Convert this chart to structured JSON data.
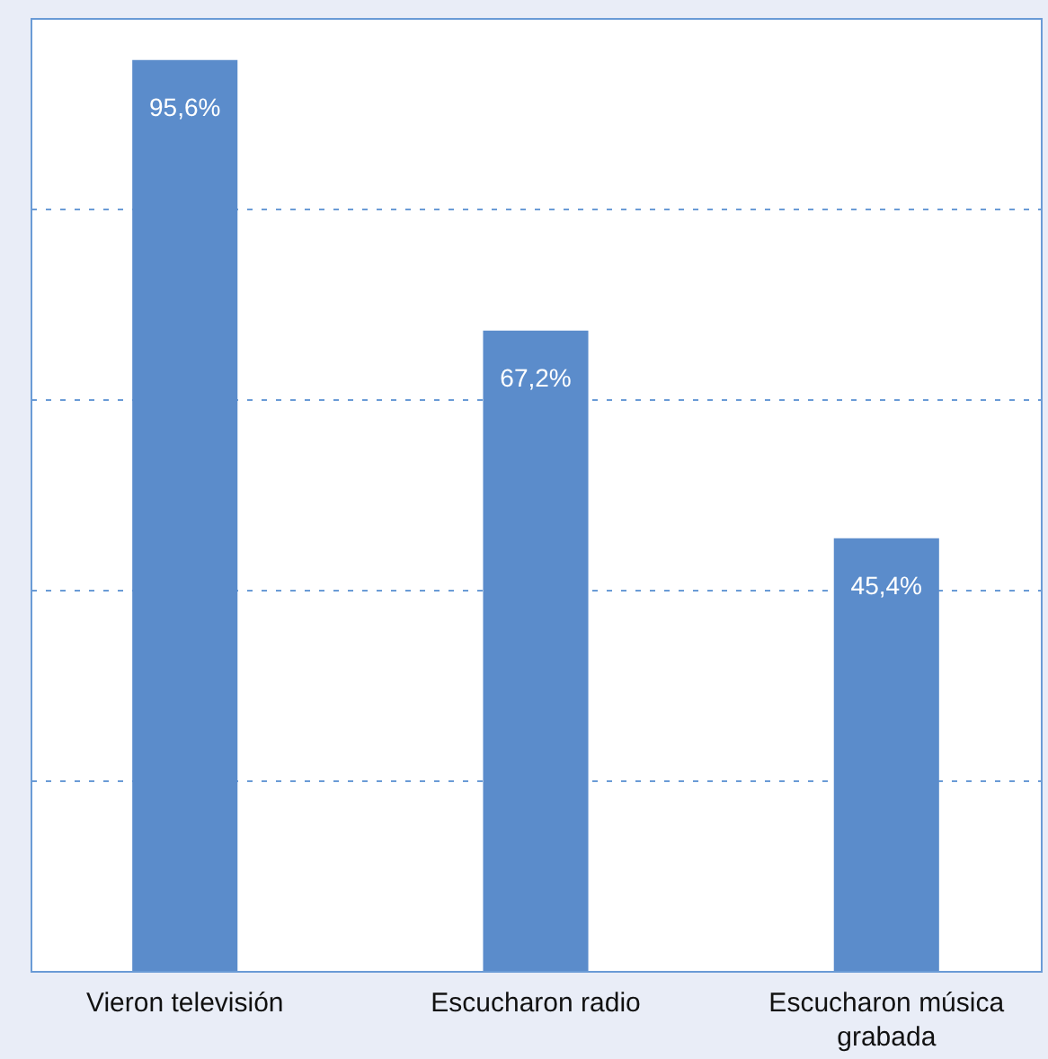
{
  "chart_data": {
    "type": "bar",
    "categories": [
      "Vieron televisión",
      "Escucharon radio",
      "Escucharon música grabada"
    ],
    "values": [
      95.6,
      67.2,
      45.4
    ],
    "value_labels": [
      "95,6%",
      "67,2%",
      "45,4%"
    ],
    "color": "#5b8ccb",
    "ylim": [
      0,
      100
    ],
    "yticks": [
      {
        "value": 20,
        "label": null
      },
      {
        "value": 40,
        "label": null
      },
      {
        "value": 60,
        "label": null
      },
      {
        "value": 80,
        "label": null
      }
    ],
    "grid": "y",
    "tick_labels": "x"
  }
}
